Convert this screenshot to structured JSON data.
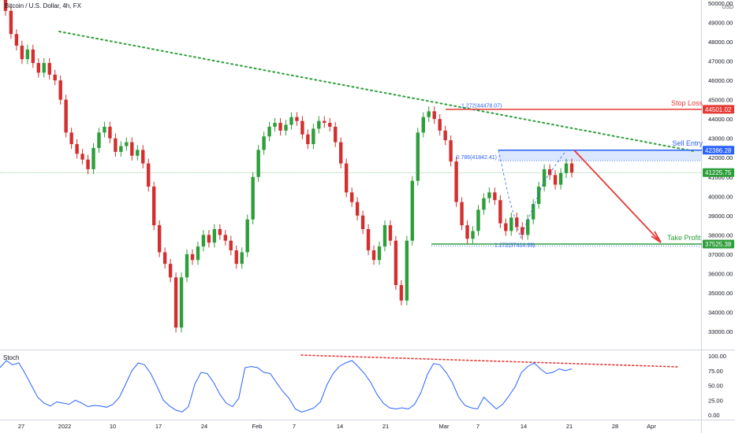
{
  "header": {
    "symbol_title": "Bitcoin / U.S. Dollar, 4h, FX",
    "currency": "USD"
  },
  "stoch_panel": {
    "label": "Stoch"
  },
  "colors": {
    "up": "#26a69a",
    "up_body": "#2e9e3a",
    "down": "#d32f2f",
    "trendline": "#2e9e3a",
    "stop_loss": "#e53935",
    "sell_entry": "#2962ff",
    "take_profit": "#2e9e3a",
    "stoch_line": "#2962ff",
    "stoch_trend": "#e53935"
  },
  "annotations": {
    "stop_loss_label": "Stop Loss",
    "sell_entry_label": "Sell Entry",
    "take_profit_label": "Take Profit",
    "stop_loss_price": "44501.02",
    "sell_entry_price": "42386.28",
    "current_price": "41225.75",
    "take_profit_price": "37525.38",
    "fib_top": "1.272(44478.07)",
    "fib_mid": "0.786(41842.41)",
    "fib_bottom": "1.272(37414.99)"
  },
  "chart_data": [
    {
      "type": "line",
      "title": "Bitcoin / U.S. Dollar, 4h, FX",
      "ylabel": "USD",
      "ylim": [
        32400,
        50800
      ],
      "y_ticks": [
        "50000.00",
        "49000.00",
        "48000.00",
        "47000.00",
        "46000.00",
        "45000.00",
        "44000.00",
        "43000.00",
        "42000.00",
        "41000.00",
        "40000.00",
        "39000.00",
        "38000.00",
        "37000.00",
        "36000.00",
        "35000.00",
        "34000.00",
        "33000.00"
      ],
      "x_ticks": [
        "27",
        "2022",
        "10",
        "17",
        "24",
        "Feb",
        "7",
        "14",
        "21",
        "Mar",
        "7",
        "14",
        "21",
        "28",
        "Apr"
      ],
      "series": [
        {
          "values": [
            50400,
            49600,
            48400,
            47800,
            47100,
            47600,
            46900,
            46400,
            46900,
            46300,
            46000,
            45000,
            43300,
            42700,
            42200,
            41900,
            41400,
            42500,
            43300,
            43600,
            43000,
            42300,
            42600,
            42800,
            42100,
            42400,
            41700,
            40500,
            38500,
            37100,
            36500,
            35800,
            33200,
            35800,
            37000,
            36700,
            37400,
            38000,
            37600,
            38300,
            38000,
            37700,
            37200,
            36500,
            37100,
            38800,
            41000,
            42400,
            43100,
            43600,
            43800,
            43400,
            43700,
            44100,
            43900,
            43200,
            42700,
            43500,
            43900,
            43800,
            43600,
            42800,
            41700,
            40200,
            39700,
            39000,
            38300,
            37200,
            36700,
            37400,
            38500,
            37700,
            35400,
            34600,
            37700,
            40800,
            43300,
            44100,
            44400,
            44000,
            43400,
            42900,
            41800,
            39700,
            38500,
            37800,
            38200,
            39300,
            39900,
            40200,
            39800,
            38600,
            38200,
            38900,
            38400,
            38000,
            38800,
            39600,
            40500,
            41400,
            41100,
            40600,
            41200,
            41700,
            41225
          ]
        }
      ]
    },
    {
      "type": "line",
      "title": "Stoch",
      "ylim": [
        0,
        100
      ],
      "y_ticks": [
        "100.00",
        "75.00",
        "50.00",
        "25.00",
        "0.00"
      ],
      "series": [
        {
          "values": [
            80,
            92,
            85,
            88,
            70,
            50,
            30,
            20,
            15,
            22,
            20,
            18,
            25,
            20,
            14,
            16,
            15,
            13,
            18,
            30,
            52,
            75,
            88,
            85,
            70,
            48,
            25,
            15,
            8,
            5,
            14,
            52,
            72,
            70,
            55,
            35,
            20,
            14,
            28,
            80,
            82,
            80,
            72,
            70,
            55,
            40,
            28,
            10,
            5,
            8,
            12,
            22,
            50,
            70,
            82,
            88,
            92,
            82,
            70,
            55,
            35,
            20,
            12,
            10,
            12,
            10,
            18,
            38,
            68,
            87,
            85,
            72,
            55,
            30,
            16,
            12,
            10,
            30,
            20,
            10,
            18,
            32,
            48,
            72,
            82,
            88,
            78,
            70,
            72,
            78,
            75,
            78
          ]
        }
      ]
    }
  ]
}
